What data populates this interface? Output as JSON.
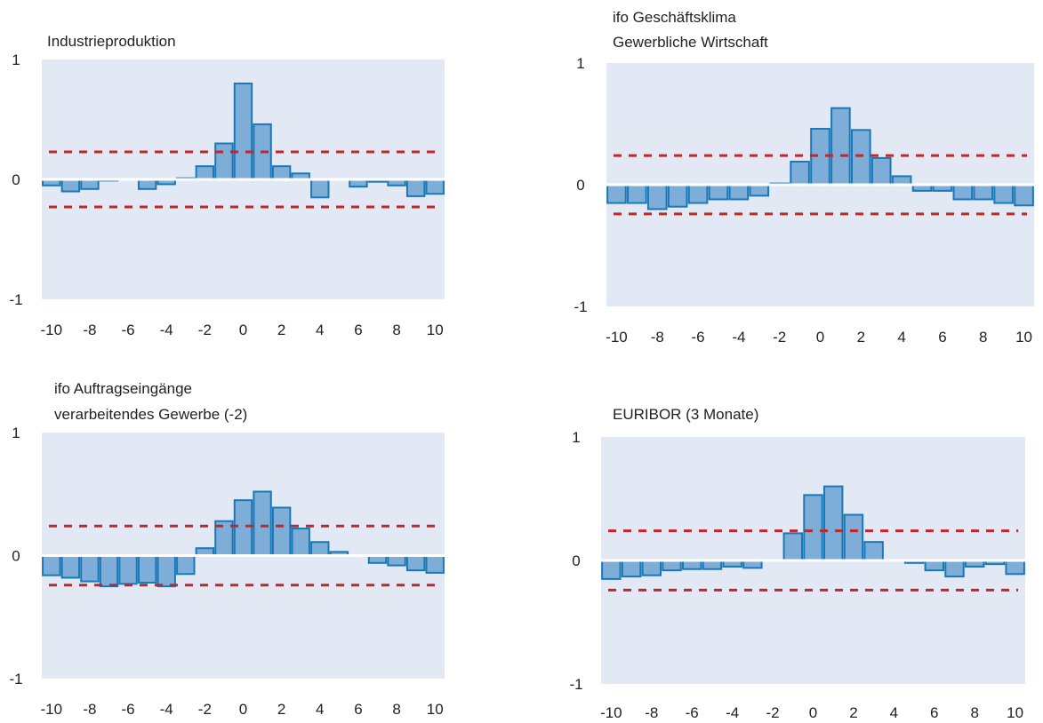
{
  "colors": {
    "plot_background": "#e3e9f4",
    "bar_fill": "#7eaed8",
    "bar_stroke": "#1878b8",
    "confidence_band": "#c0272d",
    "zero_line": "#ffffff"
  },
  "chart_data": [
    {
      "type": "bar",
      "title": [
        "Industrieproduktion"
      ],
      "xlabel": "",
      "ylabel": "",
      "x_ticks": [
        "-10",
        "-8",
        "-6",
        "-4",
        "-2",
        "0",
        "2",
        "4",
        "6",
        "8",
        "10"
      ],
      "y_ticks": [
        "-1",
        "0",
        "1"
      ],
      "ylim": [
        -1,
        1
      ],
      "xlim": [
        -10,
        10
      ],
      "grid": false,
      "confidence_band": [
        -0.23,
        0.23
      ],
      "x": [
        -10,
        -9,
        -8,
        -7,
        -6,
        -5,
        -4,
        -3,
        -2,
        -1,
        0,
        1,
        2,
        3,
        4,
        5,
        6,
        7,
        8,
        9,
        10
      ],
      "values": [
        -0.05,
        -0.1,
        -0.08,
        -0.01,
        0.0,
        -0.08,
        -0.04,
        0.01,
        0.11,
        0.3,
        0.8,
        0.46,
        0.11,
        0.05,
        -0.15,
        0.0,
        -0.06,
        -0.02,
        -0.05,
        -0.14,
        -0.12
      ]
    },
    {
      "type": "bar",
      "title": [
        "ifo Geschäftsklima",
        "Gewerbliche Wirtschaft"
      ],
      "xlabel": "",
      "ylabel": "",
      "x_ticks": [
        "-10",
        "-8",
        "-6",
        "-4",
        "-2",
        "0",
        "2",
        "4",
        "6",
        "8",
        "10"
      ],
      "y_ticks": [
        "-1",
        "0",
        "1"
      ],
      "ylim": [
        -1,
        1
      ],
      "xlim": [
        -10,
        10
      ],
      "grid": false,
      "confidence_band": [
        -0.24,
        0.24
      ],
      "x": [
        -10,
        -9,
        -8,
        -7,
        -6,
        -5,
        -4,
        -3,
        -2,
        -1,
        0,
        1,
        2,
        3,
        4,
        5,
        6,
        7,
        8,
        9,
        10
      ],
      "values": [
        -0.15,
        -0.15,
        -0.2,
        -0.18,
        -0.15,
        -0.12,
        -0.12,
        -0.09,
        0.01,
        0.19,
        0.46,
        0.63,
        0.45,
        0.22,
        0.07,
        -0.05,
        -0.05,
        -0.12,
        -0.12,
        -0.15,
        -0.17
      ]
    },
    {
      "type": "bar",
      "title": [
        "ifo Auftragseingänge",
        "verarbeitendes Gewerbe (-2)"
      ],
      "xlabel": "",
      "ylabel": "",
      "x_ticks": [
        "-10",
        "-8",
        "-6",
        "-4",
        "-2",
        "0",
        "2",
        "4",
        "6",
        "8",
        "10"
      ],
      "y_ticks": [
        "-1",
        "0",
        "1"
      ],
      "ylim": [
        -1,
        1
      ],
      "xlim": [
        -10,
        10
      ],
      "grid": false,
      "confidence_band": [
        -0.24,
        0.24
      ],
      "x": [
        -10,
        -9,
        -8,
        -7,
        -6,
        -5,
        -4,
        -3,
        -2,
        -1,
        0,
        1,
        2,
        3,
        4,
        5,
        6,
        7,
        8,
        9,
        10
      ],
      "values": [
        -0.16,
        -0.18,
        -0.21,
        -0.25,
        -0.23,
        -0.22,
        -0.25,
        -0.15,
        0.06,
        0.28,
        0.45,
        0.52,
        0.39,
        0.22,
        0.11,
        0.03,
        0.0,
        -0.06,
        -0.08,
        -0.12,
        -0.14
      ]
    },
    {
      "type": "bar",
      "title": [
        "EURIBOR (3 Monate)"
      ],
      "xlabel": "",
      "ylabel": "",
      "x_ticks": [
        "-10",
        "-8",
        "-6",
        "-4",
        "-2",
        "0",
        "2",
        "4",
        "6",
        "8",
        "10"
      ],
      "y_ticks": [
        "-1",
        "0",
        "1"
      ],
      "ylim": [
        -1,
        1
      ],
      "xlim": [
        -10,
        10
      ],
      "grid": false,
      "confidence_band": [
        -0.24,
        0.24
      ],
      "x": [
        -10,
        -9,
        -8,
        -7,
        -6,
        -5,
        -4,
        -3,
        -2,
        -1,
        0,
        1,
        2,
        3,
        4,
        5,
        6,
        7,
        8,
        9,
        10
      ],
      "values": [
        -0.15,
        -0.13,
        -0.12,
        -0.08,
        -0.07,
        -0.07,
        -0.05,
        -0.06,
        0.0,
        0.22,
        0.53,
        0.6,
        0.37,
        0.15,
        0.0,
        -0.02,
        -0.08,
        -0.13,
        -0.05,
        -0.03,
        -0.11
      ]
    }
  ]
}
